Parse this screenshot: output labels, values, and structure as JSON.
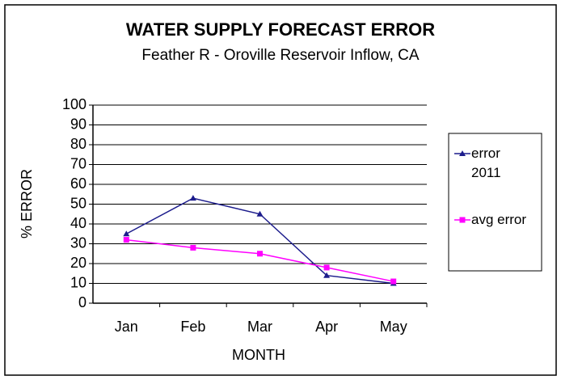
{
  "chart_data": {
    "type": "line",
    "title": "WATER SUPPLY FORECAST ERROR",
    "subtitle": "Feather R - Oroville Reservoir Inflow, CA",
    "xlabel": "MONTH",
    "ylabel": "% ERROR",
    "categories": [
      "Jan",
      "Feb",
      "Mar",
      "Apr",
      "May"
    ],
    "series": [
      {
        "name": "error 2011",
        "color": "#1c1c8c",
        "marker": "triangle",
        "values": [
          35,
          53,
          45,
          14,
          10
        ]
      },
      {
        "name": "avg error",
        "color": "#ff00ff",
        "marker": "square",
        "values": [
          32,
          28,
          25,
          18,
          11
        ]
      }
    ],
    "ylim": [
      0,
      100
    ],
    "yticks": [
      0,
      10,
      20,
      30,
      40,
      50,
      60,
      70,
      80,
      90,
      100
    ],
    "grid": true,
    "legend": "right"
  }
}
